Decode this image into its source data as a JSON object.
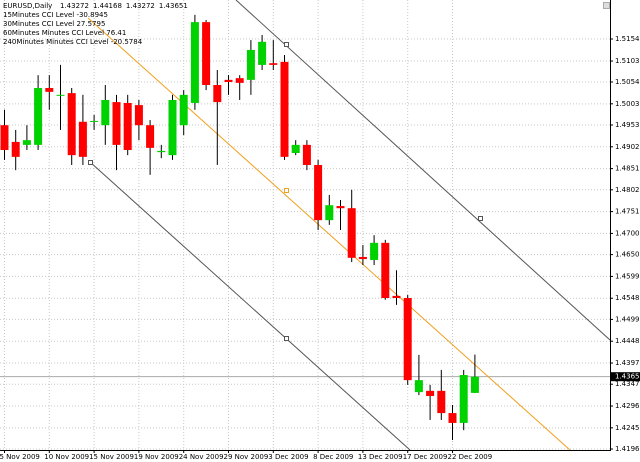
{
  "chart_data": {
    "type": "candlestick",
    "title": "EURUSD,Daily",
    "indicators": [
      "15Minutes CCI Level -30.8945",
      "30Minutes CCI Level 27.5795",
      "60Minutes Minutes CCI Level 76.41",
      "240Minutes Minutes CCI Level -20.5784"
    ],
    "categories": [
      "5 Nov 2009",
      null,
      null,
      null,
      "10 Nov 2009",
      null,
      null,
      null,
      "15 Nov 2009",
      null,
      null,
      null,
      "19 Nov 2009",
      null,
      null,
      null,
      "24 Nov 2009",
      null,
      null,
      null,
      "29 Nov 2009",
      null,
      null,
      null,
      "3 Dec 2009",
      null,
      null,
      null,
      "8 Dec 2009",
      null,
      null,
      null,
      "13 Dec 2009",
      null,
      null,
      null,
      "17 Dec 2009",
      null,
      null,
      null,
      "22 Dec 2009",
      null,
      null
    ],
    "open": [
      1.4953,
      1.4914,
      1.4907,
      1.4907,
      1.504,
      1.5024,
      1.5028,
      1.4961,
      1.4961,
      1.4953,
      1.5007,
      1.5005,
      1.5,
      1.4953,
      1.489,
      1.4883,
      1.4953,
      1.5005,
      1.5194,
      1.5047,
      1.5059,
      1.5063,
      1.5059,
      1.5094,
      1.5098,
      1.5101,
      1.4888,
      1.4907,
      1.486,
      1.4731,
      1.4764,
      1.4759,
      1.4645,
      1.4638,
      1.4678,
      1.4554,
      1.4549,
      1.4329,
      1.4332,
      1.4332,
      1.428,
      1.4257,
      1.43272
    ],
    "high": [
      1.4989,
      1.4942,
      1.4953,
      1.507,
      1.507,
      1.5094,
      1.504,
      1.5024,
      1.4977,
      1.5047,
      1.5024,
      1.5024,
      1.5012,
      1.4965,
      1.4907,
      1.5024,
      1.5035,
      1.5211,
      1.5199,
      1.5082,
      1.507,
      1.507,
      1.5152,
      1.5164,
      1.5152,
      1.5117,
      1.4918,
      1.4918,
      1.4872,
      1.479,
      1.4778,
      1.4802,
      1.4673,
      1.4696,
      1.4685,
      1.4614,
      1.4556,
      1.4416,
      1.4346,
      1.4381,
      1.4299,
      1.4381,
      1.44168
    ],
    "low": [
      1.4872,
      1.4848,
      1.4895,
      1.4895,
      1.4989,
      1.4942,
      1.486,
      1.486,
      1.4942,
      1.4907,
      1.4848,
      1.4883,
      1.4918,
      1.4837,
      1.4876,
      1.4872,
      1.493,
      1.4989,
      1.5035,
      1.486,
      1.5024,
      1.5012,
      1.5024,
      1.5082,
      1.5082,
      1.4872,
      1.4883,
      1.4848,
      1.4708,
      1.472,
      1.4708,
      1.4633,
      1.4626,
      1.4626,
      1.4545,
      1.4533,
      1.4346,
      1.4322,
      1.4264,
      1.4264,
      1.4217,
      1.424,
      1.43272
    ],
    "close": [
      1.4895,
      1.4879,
      1.4918,
      1.504,
      1.5031,
      1.5024,
      1.4883,
      1.4879,
      1.4963,
      1.5012,
      1.4907,
      1.4895,
      1.4953,
      1.49,
      1.4893,
      1.5012,
      1.5024,
      1.5194,
      1.5047,
      1.5007,
      1.5054,
      1.5052,
      1.5129,
      1.5148,
      1.5094,
      1.4879,
      1.4907,
      1.486,
      1.4731,
      1.4766,
      1.4759,
      1.4643,
      1.464,
      1.4678,
      1.4549,
      1.4549,
      1.4357,
      1.4357,
      1.432,
      1.428,
      1.4257,
      1.4369,
      1.43651
    ],
    "up_color": "#00d200",
    "down_color": "#ff0000",
    "current_price": 1.43651,
    "ylim": [
      1.41937,
      1.52457
    ],
    "yticks": [
      1.51545,
      {
        "value": 1.5103,
        "label": "1.51030"
      },
      {
        "value": 1.5054,
        "label": "1.50540"
      },
      {
        "value": 1.5003,
        "label": "1.50030"
      },
      1.49535,
      1.49025,
      1.48515,
      {
        "value": 1.4802,
        "label": "1.48020"
      },
      {
        "value": 1.4751,
        "label": "1.47510"
      },
      {
        "value": 1.47,
        "label": "1.47000"
      },
      1.46505,
      1.45995,
      1.45485,
      {
        "value": 1.4499,
        "label": "1.44990"
      },
      {
        "value": 1.4448,
        "label": "1.44480"
      },
      {
        "value": 1.4397,
        "label": "1.43970"
      },
      1.43475,
      1.42965,
      1.42455,
      {
        "value": 1.4196,
        "label": "1.41960"
      }
    ],
    "grid": true
  }
}
